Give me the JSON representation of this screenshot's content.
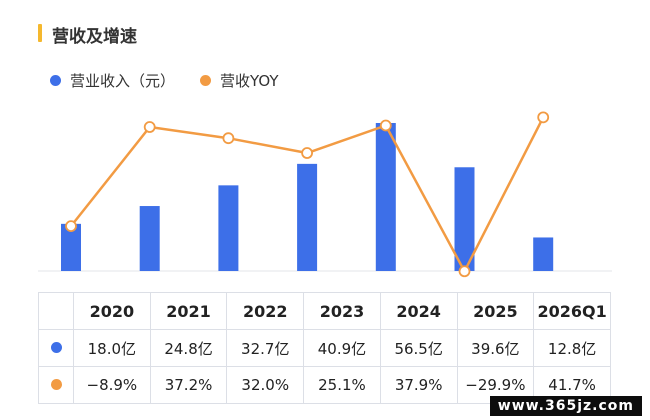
{
  "title": "营收及增速",
  "watermark": "www.365jz.com",
  "colors": {
    "revenue": "#3d6fe8",
    "yoy": "#f29b43",
    "title_accent": "#f5b82e"
  },
  "chart_data": {
    "type": "bar",
    "categories": [
      "2020",
      "2021",
      "2022",
      "2023",
      "2024",
      "2025",
      "2026Q1"
    ],
    "series": [
      {
        "name": "营业收入（元）",
        "type": "bar",
        "values": [
          18.0,
          24.8,
          32.7,
          40.9,
          56.5,
          39.6,
          12.8
        ],
        "labels": [
          "18.0亿",
          "24.8亿",
          "32.7亿",
          "40.9亿",
          "56.5亿",
          "39.6亿",
          "12.8亿"
        ]
      },
      {
        "name": "营收YOY",
        "type": "line",
        "values": [
          -8.9,
          37.2,
          32.0,
          25.1,
          37.9,
          -29.9,
          41.7
        ],
        "labels": [
          "−8.9%",
          "37.2%",
          "32.0%",
          "25.1%",
          "37.9%",
          "−29.9%",
          "41.7%"
        ]
      }
    ],
    "legend": "top-left",
    "grid": false
  }
}
